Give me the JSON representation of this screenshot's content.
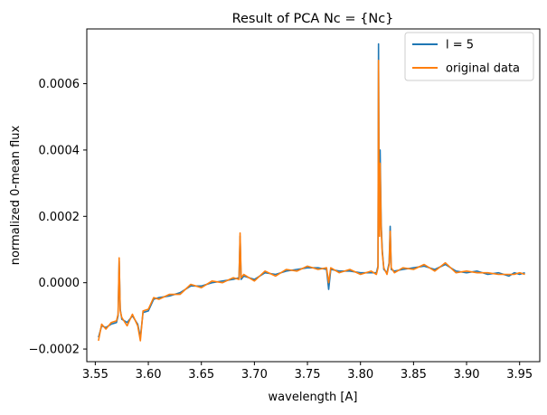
{
  "chart_data": {
    "type": "line",
    "title": "Result of PCA Nc = {Nc}",
    "xlabel": "wavelength [A]",
    "ylabel": "normalized 0-mean flux",
    "xlim": [
      3.542,
      3.969
    ],
    "ylim": [
      -0.000238,
      0.000765
    ],
    "xticks": [
      3.55,
      3.6,
      3.65,
      3.7,
      3.75,
      3.8,
      3.85,
      3.9,
      3.95
    ],
    "xtick_labels": [
      "3.55",
      "3.60",
      "3.65",
      "3.70",
      "3.75",
      "3.80",
      "3.85",
      "3.90",
      "3.95"
    ],
    "yticks": [
      -0.0002,
      0.0,
      0.0002,
      0.0004,
      0.0006
    ],
    "ytick_labels": [
      "−0.0002",
      "0.0000",
      "0.0002",
      "0.0004",
      "0.0006"
    ],
    "legend_position": "top-right",
    "series": [
      {
        "name": "l = 5",
        "color": "#1f77b4",
        "x": [
          3.553,
          3.556,
          3.56,
          3.565,
          3.57,
          3.5715,
          3.5725,
          3.5735,
          3.575,
          3.58,
          3.585,
          3.59,
          3.5925,
          3.595,
          3.6,
          3.605,
          3.61,
          3.62,
          3.63,
          3.64,
          3.65,
          3.66,
          3.67,
          3.68,
          3.6855,
          3.6865,
          3.6875,
          3.69,
          3.7,
          3.71,
          3.72,
          3.73,
          3.74,
          3.75,
          3.76,
          3.768,
          3.77,
          3.772,
          3.78,
          3.79,
          3.8,
          3.81,
          3.815,
          3.8165,
          3.817,
          3.8175,
          3.818,
          3.8185,
          3.8195,
          3.8205,
          3.822,
          3.825,
          3.827,
          3.828,
          3.829,
          3.832,
          3.84,
          3.85,
          3.86,
          3.87,
          3.88,
          3.89,
          3.9,
          3.91,
          3.92,
          3.93,
          3.94,
          3.945,
          3.95,
          3.955
        ],
        "y": [
          -0.000165,
          -0.00013,
          -0.000135,
          -0.000125,
          -0.00012,
          -0.0001,
          6.5e-05,
          -8e-05,
          -0.00011,
          -0.00012,
          -0.0001,
          -0.000125,
          -0.000165,
          -9e-05,
          -8.5e-05,
          -5e-05,
          -4.5e-05,
          -4e-05,
          -3e-05,
          -1e-05,
          -1e-05,
          0.0,
          5e-06,
          1e-05,
          1.5e-05,
          0.00014,
          1e-05,
          2e-05,
          1e-05,
          3e-05,
          2.5e-05,
          3.5e-05,
          4e-05,
          4.5e-05,
          4.5e-05,
          4e-05,
          -2e-05,
          4e-05,
          3.5e-05,
          3.5e-05,
          3e-05,
          3e-05,
          3e-05,
          5e-05,
          0.00072,
          0.0003,
          0.00016,
          0.0004,
          0.00018,
          0.0001,
          4e-05,
          3e-05,
          6e-05,
          0.00017,
          4e-05,
          3.5e-05,
          4e-05,
          4.5e-05,
          5e-05,
          4e-05,
          5.5e-05,
          3.5e-05,
          3e-05,
          3.5e-05,
          2.5e-05,
          3e-05,
          2e-05,
          3e-05,
          2.5e-05,
          3e-05
        ]
      },
      {
        "name": "original data",
        "color": "#ff7f0e",
        "x": [
          3.553,
          3.556,
          3.56,
          3.565,
          3.57,
          3.5715,
          3.5725,
          3.5735,
          3.575,
          3.58,
          3.585,
          3.59,
          3.5925,
          3.595,
          3.6,
          3.605,
          3.61,
          3.62,
          3.63,
          3.64,
          3.65,
          3.66,
          3.67,
          3.68,
          3.6855,
          3.6865,
          3.6875,
          3.69,
          3.7,
          3.71,
          3.72,
          3.73,
          3.74,
          3.75,
          3.76,
          3.768,
          3.77,
          3.772,
          3.78,
          3.79,
          3.8,
          3.81,
          3.815,
          3.8165,
          3.817,
          3.8175,
          3.818,
          3.8185,
          3.8195,
          3.8205,
          3.822,
          3.825,
          3.827,
          3.828,
          3.829,
          3.832,
          3.84,
          3.85,
          3.86,
          3.87,
          3.88,
          3.89,
          3.9,
          3.91,
          3.92,
          3.93,
          3.94,
          3.945,
          3.95,
          3.955
        ],
        "y": [
          -0.000175,
          -0.000125,
          -0.00014,
          -0.00012,
          -0.000115,
          -9.5e-05,
          7.5e-05,
          -8.5e-05,
          -0.000105,
          -0.00013,
          -9.5e-05,
          -0.00013,
          -0.000175,
          -8.5e-05,
          -8e-05,
          -4.5e-05,
          -5e-05,
          -3.5e-05,
          -3.5e-05,
          -5e-06,
          -1.5e-05,
          5e-06,
          0.0,
          1.5e-05,
          1e-05,
          0.00015,
          1.5e-05,
          2.5e-05,
          5e-06,
          3.5e-05,
          2e-05,
          4e-05,
          3.5e-05,
          5e-05,
          4e-05,
          4.5e-05,
          0.0,
          4.5e-05,
          3e-05,
          4e-05,
          2.5e-05,
          3.5e-05,
          2.5e-05,
          4.5e-05,
          0.00067,
          0.00028,
          0.00014,
          0.00036,
          0.000165,
          9e-05,
          4.5e-05,
          2.5e-05,
          5.5e-05,
          0.000155,
          4.5e-05,
          3e-05,
          4.5e-05,
          4e-05,
          5.5e-05,
          3.5e-05,
          6e-05,
          3e-05,
          3.5e-05,
          3e-05,
          3e-05,
          2.5e-05,
          2.5e-05,
          2.5e-05,
          3e-05,
          2.5e-05
        ]
      }
    ]
  }
}
